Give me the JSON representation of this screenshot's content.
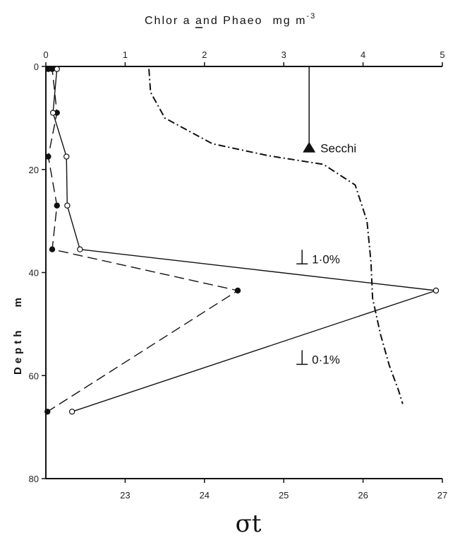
{
  "chart_data": {
    "type": "scatter",
    "title_top": "Chlor a and Phaeo",
    "title_top_units": "mg m",
    "title_top_exp": "-3",
    "ylabel": "Depth",
    "ylabel_units": "m",
    "xlabel_bottom": "σt",
    "top_axis": {
      "min": 0,
      "max": 5,
      "ticks": [
        "0",
        "1",
        "2",
        "3",
        "4",
        "5"
      ]
    },
    "bottom_axis": {
      "min": 22,
      "max": 27,
      "ticks": [
        "23",
        "24",
        "25",
        "26",
        "27"
      ]
    },
    "y_axis": {
      "min": 0,
      "max": 80,
      "ticks": [
        "0",
        "20",
        "40",
        "60",
        "80"
      ],
      "inverted": true
    },
    "series": [
      {
        "key": "chlor_a",
        "marker": "filled",
        "style": "dashed",
        "axis": "top",
        "points": [
          {
            "x": 0.03,
            "y": 0.5
          },
          {
            "x": 0.08,
            "y": 0.5
          },
          {
            "x": 0.14,
            "y": 9
          },
          {
            "x": 0.03,
            "y": 17.5
          },
          {
            "x": 0.14,
            "y": 27
          },
          {
            "x": 0.08,
            "y": 35.5
          },
          {
            "x": 2.42,
            "y": 43.5
          },
          {
            "x": 0.02,
            "y": 67
          }
        ]
      },
      {
        "key": "phaeo",
        "marker": "open",
        "style": "solid",
        "axis": "top",
        "points": [
          {
            "x": 0.14,
            "y": 0.5
          },
          {
            "x": 0.09,
            "y": 9
          },
          {
            "x": 0.26,
            "y": 17.5
          },
          {
            "x": 0.27,
            "y": 27
          },
          {
            "x": 0.43,
            "y": 35.5
          },
          {
            "x": 4.92,
            "y": 43.5
          },
          {
            "x": 0.33,
            "y": 67
          }
        ]
      },
      {
        "key": "sigma_t",
        "marker": "none",
        "style": "dash-dot",
        "axis": "bottom",
        "points": [
          {
            "x": 23.3,
            "y": 0.5
          },
          {
            "x": 23.32,
            "y": 5
          },
          {
            "x": 23.5,
            "y": 10
          },
          {
            "x": 24.1,
            "y": 15
          },
          {
            "x": 24.8,
            "y": 17.3
          },
          {
            "x": 25.5,
            "y": 19
          },
          {
            "x": 25.9,
            "y": 23
          },
          {
            "x": 26.05,
            "y": 30
          },
          {
            "x": 26.1,
            "y": 38
          },
          {
            "x": 26.12,
            "y": 45
          },
          {
            "x": 26.22,
            "y": 52
          },
          {
            "x": 26.33,
            "y": 58
          },
          {
            "x": 26.45,
            "y": 63
          },
          {
            "x": 26.5,
            "y": 65.5
          }
        ]
      }
    ],
    "annotations": {
      "secchi": {
        "label": "Secchi",
        "x": 3.32,
        "y": 16
      },
      "light_1": {
        "label": "1·0%",
        "x": 3.32,
        "y": 37.5
      },
      "light_01": {
        "label": "0·1%",
        "x": 3.32,
        "y": 57
      }
    }
  }
}
